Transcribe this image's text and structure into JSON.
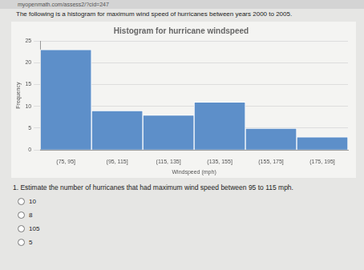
{
  "page": {
    "url": "myopenmath.com/assess2/?cid=247",
    "intro": "The following is a histogram for maximum wind speed of hurricanes between years 2000 to 2005.",
    "question": "1. Estimate the number of hurricanes that had maximum wind speed between 95 to 115 mph.",
    "options": [
      "10",
      "8",
      "105",
      "5"
    ]
  },
  "chart_data": {
    "type": "histogram",
    "title": "Histogram for hurricane windspeed",
    "x_label": "Windspeed (mph)",
    "y_label": "Frequency",
    "categories": [
      "(75, 95]",
      "(95, 115]",
      "(115, 135]",
      "(135, 155]",
      "(155, 175]",
      "(175, 195]"
    ],
    "values": [
      23,
      9,
      8,
      11,
      5,
      3
    ],
    "color": "#5d8fc9",
    "ylim": [
      0,
      25
    ],
    "yticks": [
      0,
      5,
      10,
      15,
      20,
      25
    ],
    "grid": true
  }
}
